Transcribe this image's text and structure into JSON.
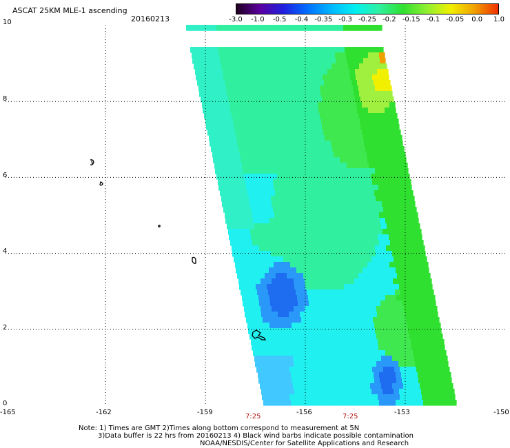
{
  "title": "ASCAT 25KM MLE-1 ascending",
  "date": "20160213",
  "colorbar": {
    "labels": [
      "-3.0",
      "-1.0",
      "-0.5",
      "-0.4",
      "-0.35",
      "-0.3",
      "-0.25",
      "-0.2",
      "-0.15",
      "-0.1",
      "-0.05",
      "0.0",
      "1.0"
    ],
    "colors": [
      "#200020",
      "#5a00a0",
      "#2020e0",
      "#0070ff",
      "#00b8ff",
      "#00f0f0",
      "#30f0a0",
      "#30e030",
      "#90f030",
      "#f0f000",
      "#f0a000",
      "#f03000"
    ]
  },
  "map": {
    "lat_labels": [
      "10",
      "8",
      "6",
      "4",
      "2",
      "0"
    ],
    "lon_labels": [
      "-165",
      "-162",
      "-159",
      "-156",
      "-153",
      "-150"
    ],
    "lat_range": [
      0,
      10
    ],
    "lon_range": [
      -165,
      -150
    ],
    "pass_times": [
      "7:25",
      "7:25"
    ]
  },
  "notes": {
    "line1": "Note: 1) Times are GMT 2)Times along bottom correspond to measurement at 5N",
    "line2": "3)Data buffer is 22 hrs from 20160213 4) Black wind barbs indicate possible contamination",
    "line3": "NOAA/NESDIS/Center for Satellite Applications and Research"
  }
}
